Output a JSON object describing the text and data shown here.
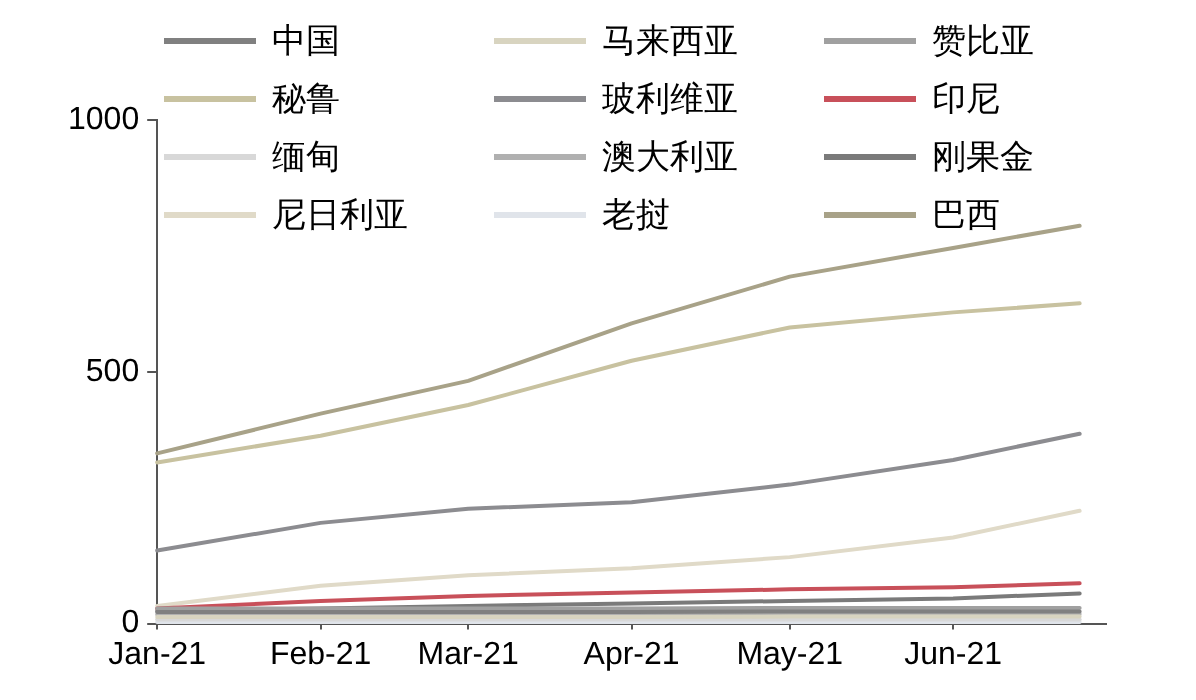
{
  "chart_data": {
    "type": "line",
    "legend": "top",
    "marker": "none",
    "line_style": "solid",
    "grid": false,
    "x": [
      "2021-01-01",
      "2021-02-01",
      "2021-03-01",
      "2021-04-01",
      "2021-05-01",
      "2021-06-01",
      "2021-06-25"
    ],
    "xlim": [
      "2021-01-01",
      "2021-06-30"
    ],
    "xticks": [
      {
        "value": "2021-01-01",
        "label": "Jan-21"
      },
      {
        "value": "2021-02-01",
        "label": "Feb-21"
      },
      {
        "value": "2021-03-01",
        "label": "Mar-21"
      },
      {
        "value": "2021-04-01",
        "label": "Apr-21"
      },
      {
        "value": "2021-05-01",
        "label": "May-21"
      },
      {
        "value": "2021-06-01",
        "label": "Jun-21"
      }
    ],
    "ylim": [
      0,
      1000
    ],
    "yticks": [
      0,
      500,
      1000
    ],
    "series": [
      {
        "name": "中国",
        "color": "#808080",
        "values": [
          23,
          23,
          23,
          23,
          24,
          24,
          24
        ]
      },
      {
        "name": "马来西亚",
        "color": "#d8d4c0",
        "values": [
          13,
          13,
          13,
          13,
          14,
          14,
          14
        ]
      },
      {
        "name": "赞比亚",
        "color": "#a0a0a0",
        "values": [
          30,
          30,
          30,
          30,
          31,
          31,
          31
        ]
      },
      {
        "name": "秘鲁",
        "color": "#c8c2a0",
        "values": [
          320,
          373,
          434,
          522,
          588,
          618,
          636
        ]
      },
      {
        "name": "玻利维亚",
        "color": "#8c8c90",
        "values": [
          145,
          200,
          228,
          241,
          276,
          325,
          377
        ]
      },
      {
        "name": "印尼",
        "color": "#c8505a",
        "values": [
          30,
          45,
          55,
          62,
          68,
          72,
          80
        ]
      },
      {
        "name": "缅甸",
        "color": "#d8d8d8",
        "values": [
          8,
          8,
          8,
          8,
          8,
          8,
          8
        ]
      },
      {
        "name": "澳大利亚",
        "color": "#b0b0b0",
        "values": [
          18,
          18,
          18,
          19,
          19,
          19,
          19
        ]
      },
      {
        "name": "刚果金",
        "color": "#7a7a7a",
        "values": [
          25,
          30,
          35,
          40,
          45,
          50,
          60
        ]
      },
      {
        "name": "尼日利亚",
        "color": "#e0dac8",
        "values": [
          35,
          75,
          96,
          110,
          132,
          171,
          224
        ]
      },
      {
        "name": "老挝",
        "color": "#e0e4ea",
        "values": [
          3,
          3,
          3,
          3,
          3,
          3,
          3
        ]
      },
      {
        "name": "巴西",
        "color": "#a8a288",
        "values": [
          338,
          417,
          482,
          596,
          689,
          746,
          790
        ]
      }
    ]
  }
}
